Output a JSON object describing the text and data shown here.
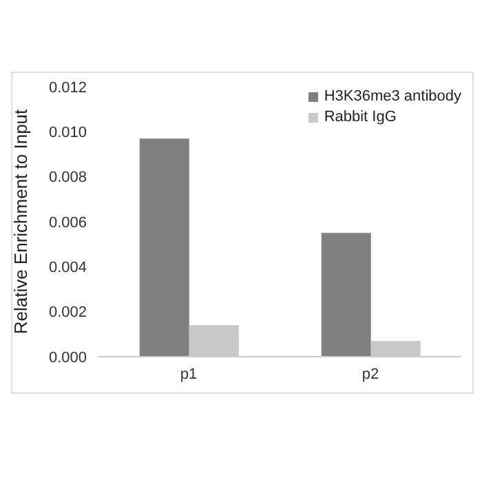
{
  "chart_data": {
    "type": "bar",
    "categories": [
      "p1",
      "p2"
    ],
    "ylabel": "Relative Enrichment to Input",
    "series": [
      {
        "name": "H3K36me3 antibody",
        "color": "#808080",
        "values": [
          0.0097,
          0.0055
        ]
      },
      {
        "name": "Rabbit IgG",
        "color": "#c8c8c8",
        "values": [
          0.0014,
          0.0007
        ]
      }
    ],
    "ylim": [
      0,
      0.012
    ],
    "yticks": [
      {
        "value": 0,
        "label": "0.000"
      },
      0.002,
      0.004,
      0.006,
      0.008,
      {
        "value": 0.01,
        "label": "0.010"
      },
      0.012
    ],
    "grid": false,
    "legend": "top right"
  }
}
